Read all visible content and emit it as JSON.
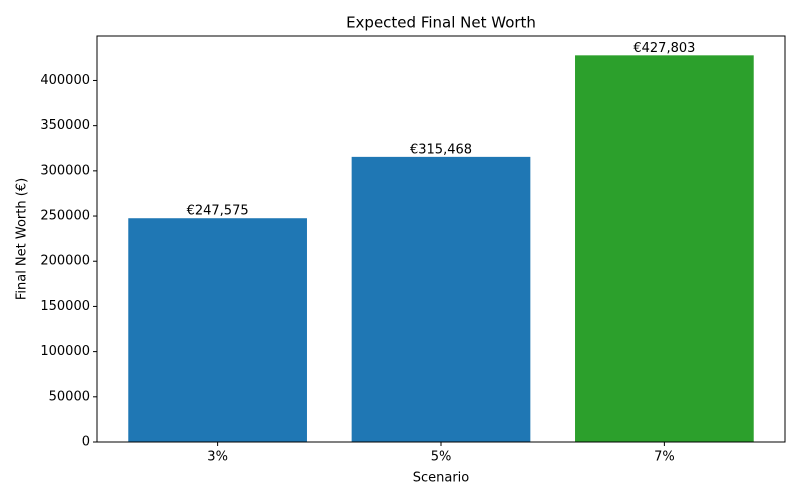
{
  "chart_data": {
    "type": "bar",
    "title": "Expected Final Net Worth",
    "x_label": "Scenario",
    "y_label": "Final Net Worth (€)",
    "categories": [
      "3%",
      "5%",
      "7%"
    ],
    "values": [
      247575,
      315468,
      427803
    ],
    "value_labels": [
      "€247,575",
      "€315,468",
      "€427,803"
    ],
    "colors": [
      "#1f77b4",
      "#1f77b4",
      "#2ca02c"
    ],
    "ylim": [
      0,
      449193
    ],
    "yticks": [
      0,
      50000,
      100000,
      150000,
      200000,
      250000,
      300000,
      350000,
      400000
    ],
    "grid": false
  }
}
